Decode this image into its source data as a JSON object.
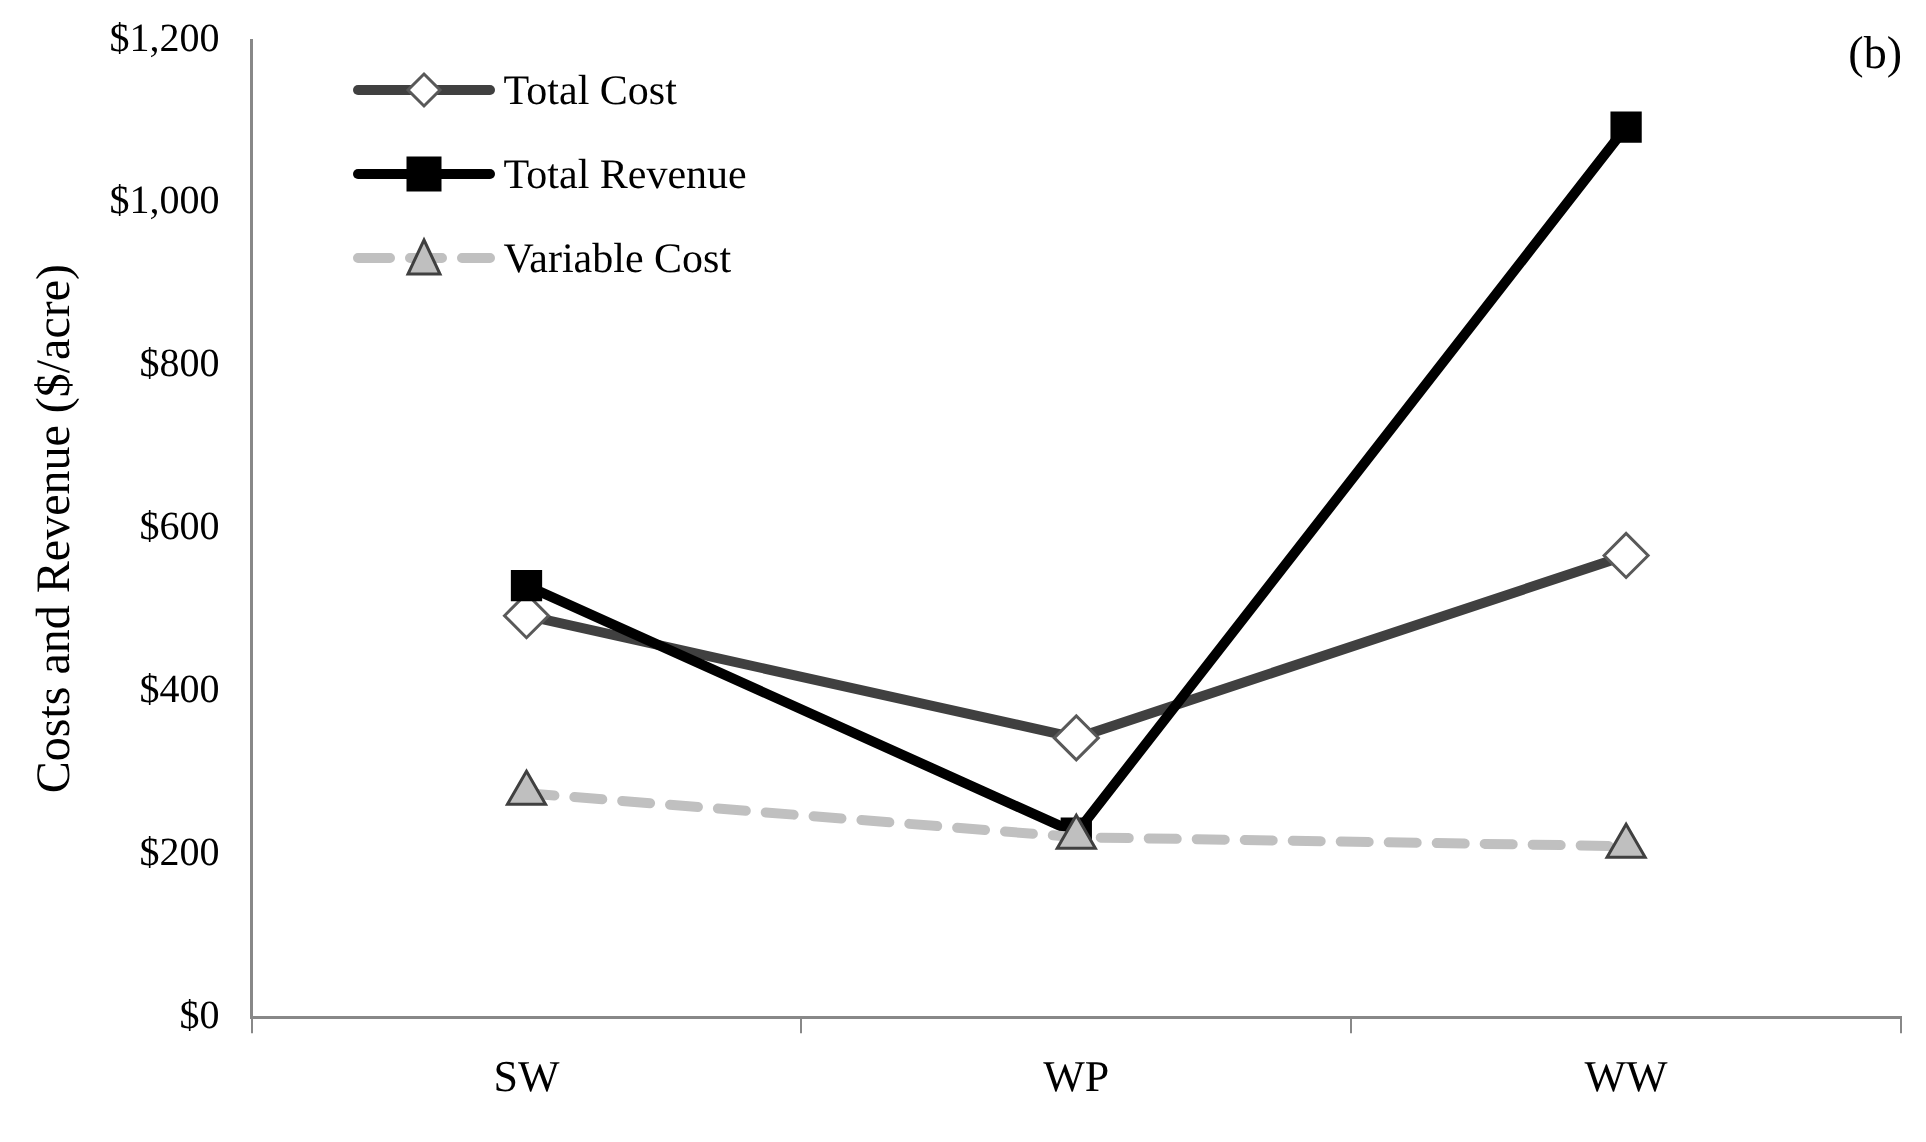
{
  "chart_data": {
    "type": "line",
    "ylabel": "Costs and Revenue ($/acre)",
    "categories": [
      "SW",
      "WP",
      "WW"
    ],
    "series": [
      {
        "name": "Total Cost",
        "color": "#404040",
        "values": [
          493,
          343,
          567
        ],
        "marker": "diamond",
        "line_style": "solid"
      },
      {
        "name": "Total Revenue",
        "color": "#000000",
        "values": [
          530,
          226,
          1093
        ],
        "marker": "square",
        "line_style": "solid"
      },
      {
        "name": "Variable Cost",
        "color": "#c0c0c0",
        "values": [
          275,
          221,
          210
        ],
        "marker": "triangle",
        "line_style": "dashed"
      }
    ],
    "ylim": [
      0,
      1200
    ],
    "yticks": [
      {
        "value": 0,
        "label": "$0"
      },
      {
        "value": 200,
        "label": "$200"
      },
      {
        "value": 400,
        "label": "$400"
      },
      {
        "value": 600,
        "label": "$600"
      },
      {
        "value": 800,
        "label": "$800"
      },
      {
        "value": 1000,
        "label": "$1,000"
      },
      {
        "value": 1200,
        "label": "$1,200"
      }
    ],
    "grid": false,
    "legend": "top left",
    "annotations": [
      "(b)"
    ]
  }
}
